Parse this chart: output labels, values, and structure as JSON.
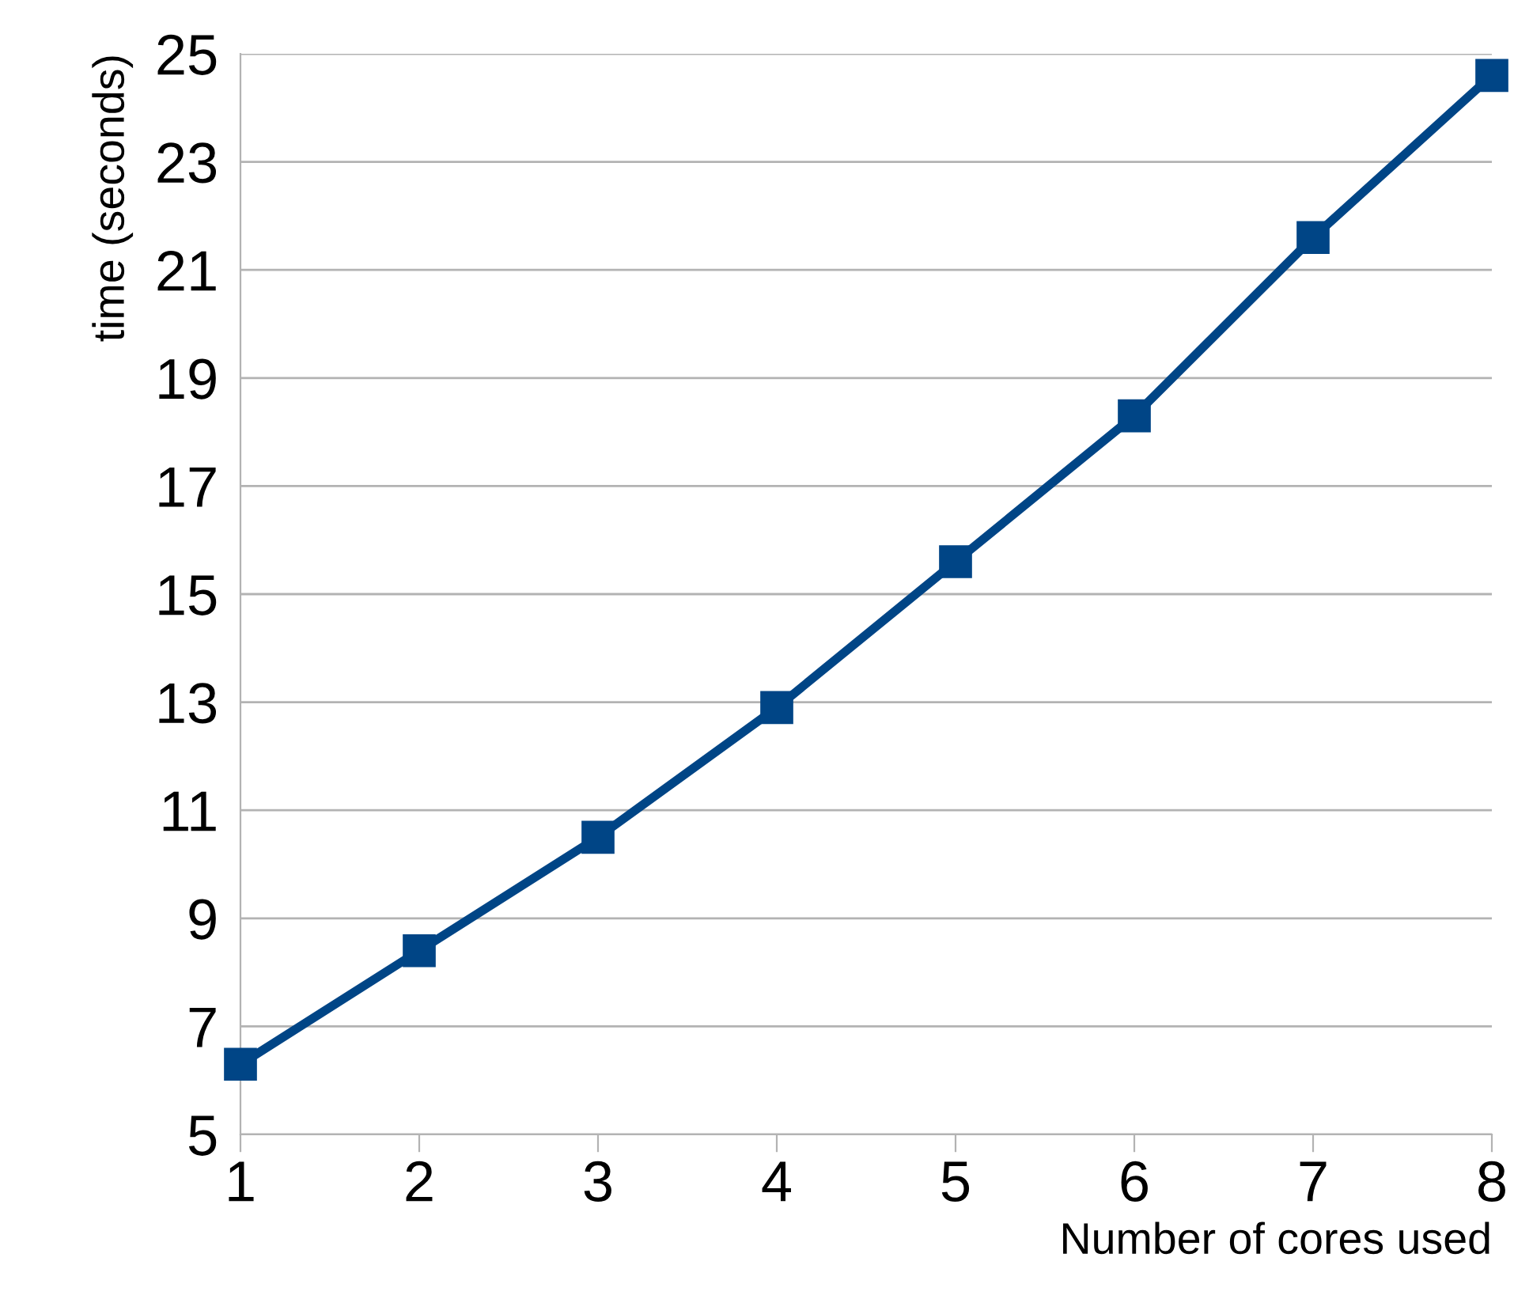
{
  "chart_data": {
    "type": "line",
    "xlabel": "Number of cores used",
    "ylabel": "time (seconds)",
    "x": [
      1,
      2,
      3,
      4,
      5,
      6,
      7,
      8
    ],
    "series": [
      {
        "color": "#004586",
        "values": [
          6.3,
          8.4,
          10.5,
          12.9,
          15.6,
          18.3,
          21.6,
          24.6
        ]
      }
    ],
    "xlim": [
      1,
      8
    ],
    "xticks": [
      1,
      2,
      3,
      4,
      5,
      6,
      7,
      8
    ],
    "ylim": [
      5,
      25
    ],
    "yticks": [
      5,
      7,
      9,
      11,
      13,
      15,
      17,
      19,
      21,
      23,
      25
    ],
    "grid": "y",
    "marker": "square",
    "line_style": "solid",
    "legend": false
  }
}
